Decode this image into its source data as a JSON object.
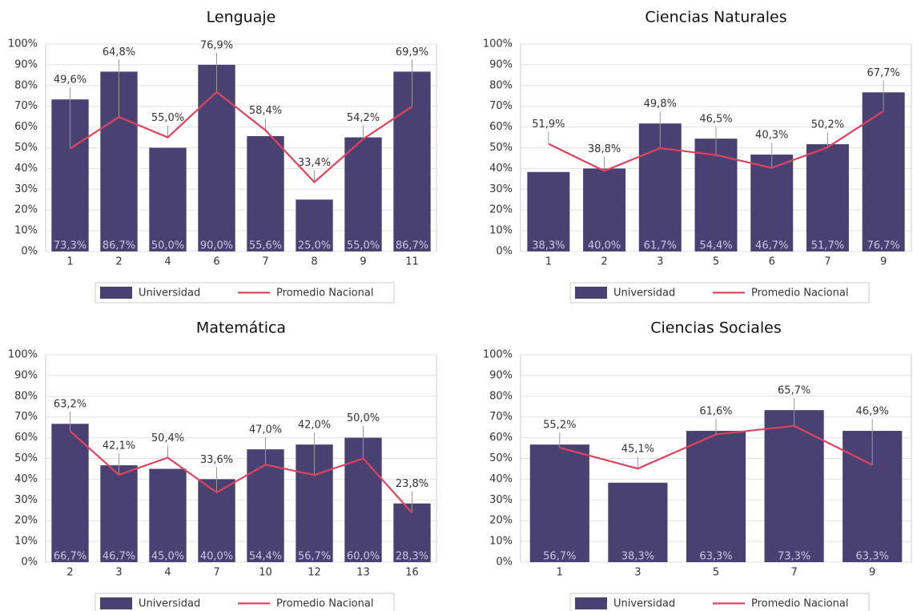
{
  "chart_data": [
    {
      "type": "bar",
      "title": "Lenguaje",
      "categories": [
        "1",
        "2",
        "4",
        "6",
        "7",
        "8",
        "9",
        "11"
      ],
      "series": [
        {
          "name": "Universidad",
          "type": "bar",
          "color": "#4a4173",
          "values": [
            73.3,
            86.7,
            50.0,
            90.0,
            55.6,
            25.0,
            55.0,
            86.7
          ],
          "value_labels": [
            "73,3%",
            "86,7%",
            "50,0%",
            "90,0%",
            "55,6%",
            "25,0%",
            "55,0%",
            "86,7%"
          ]
        },
        {
          "name": "Promedio Nacional",
          "type": "line",
          "color": "#e0435c",
          "values": [
            49.6,
            64.8,
            55.0,
            76.9,
            58.4,
            33.4,
            54.2,
            69.9
          ],
          "value_labels": [
            "49,6%",
            "64,8%",
            "55,0%",
            "76,9%",
            "58,4%",
            "33,4%",
            "54,2%",
            "69,9%"
          ]
        }
      ],
      "ylim": [
        0,
        100
      ],
      "yticks": [
        {
          "value": 0,
          "label": "0%"
        },
        {
          "value": 10,
          "label": "10%"
        },
        {
          "value": 20,
          "label": "20%"
        },
        {
          "value": 30,
          "label": "30%"
        },
        {
          "value": 40,
          "label": "40%"
        },
        {
          "value": 50,
          "label": "50%"
        },
        {
          "value": 60,
          "label": "60%"
        },
        {
          "value": 70,
          "label": "70%"
        },
        {
          "value": 80,
          "label": "80%"
        },
        {
          "value": 90,
          "label": "90%"
        },
        {
          "value": 100,
          "label": "100%"
        }
      ],
      "grid": true,
      "legend": "bottom"
    },
    {
      "type": "bar",
      "title": "Ciencias Naturales",
      "categories": [
        "1",
        "2",
        "3",
        "5",
        "6",
        "7",
        "9"
      ],
      "series": [
        {
          "name": "Universidad",
          "type": "bar",
          "color": "#4a4173",
          "values": [
            38.3,
            40.0,
            61.7,
            54.4,
            46.7,
            51.7,
            76.7
          ],
          "value_labels": [
            "38,3%",
            "40,0%",
            "61,7%",
            "54,4%",
            "46,7%",
            "51,7%",
            "76,7%"
          ]
        },
        {
          "name": "Promedio Nacional",
          "type": "line",
          "color": "#e0435c",
          "values": [
            51.9,
            38.8,
            49.8,
            46.5,
            40.3,
            50.2,
            67.7
          ],
          "value_labels": [
            "51,9%",
            "38,8%",
            "49,8%",
            "46,5%",
            "40,3%",
            "50,2%",
            "67,7%"
          ]
        }
      ],
      "ylim": [
        0,
        100
      ],
      "yticks": [
        {
          "value": 0,
          "label": "0%"
        },
        {
          "value": 10,
          "label": "10%"
        },
        {
          "value": 20,
          "label": "20%"
        },
        {
          "value": 30,
          "label": "30%"
        },
        {
          "value": 40,
          "label": "40%"
        },
        {
          "value": 50,
          "label": "50%"
        },
        {
          "value": 60,
          "label": "60%"
        },
        {
          "value": 70,
          "label": "70%"
        },
        {
          "value": 80,
          "label": "80%"
        },
        {
          "value": 90,
          "label": "90%"
        },
        {
          "value": 100,
          "label": "100%"
        }
      ],
      "grid": true,
      "legend": "bottom"
    },
    {
      "type": "bar",
      "title": "Matemática",
      "categories": [
        "2",
        "3",
        "4",
        "7",
        "10",
        "12",
        "13",
        "16"
      ],
      "series": [
        {
          "name": "Universidad",
          "type": "bar",
          "color": "#4a4173",
          "values": [
            66.7,
            46.7,
            45.0,
            40.0,
            54.4,
            56.7,
            60.0,
            28.3
          ],
          "value_labels": [
            "66,7%",
            "46,7%",
            "45,0%",
            "40,0%",
            "54,4%",
            "56,7%",
            "60,0%",
            "28,3%"
          ]
        },
        {
          "name": "Promedio Nacional",
          "type": "line",
          "color": "#e0435c",
          "values": [
            63.2,
            42.1,
            50.4,
            33.6,
            47.0,
            42.0,
            50.0,
            23.8
          ],
          "value_labels": [
            "63,2%",
            "42,1%",
            "50,4%",
            "33,6%",
            "47,0%",
            "42,0%",
            "50,0%",
            "23,8%"
          ]
        }
      ],
      "ylim": [
        0,
        100
      ],
      "yticks": [
        {
          "value": 0,
          "label": "0%"
        },
        {
          "value": 10,
          "label": "10%"
        },
        {
          "value": 20,
          "label": "20%"
        },
        {
          "value": 30,
          "label": "30%"
        },
        {
          "value": 40,
          "label": "40%"
        },
        {
          "value": 50,
          "label": "50%"
        },
        {
          "value": 60,
          "label": "60%"
        },
        {
          "value": 70,
          "label": "70%"
        },
        {
          "value": 80,
          "label": "80%"
        },
        {
          "value": 90,
          "label": "90%"
        },
        {
          "value": 100,
          "label": "100%"
        }
      ],
      "grid": true,
      "legend": "bottom"
    },
    {
      "type": "bar",
      "title": "Ciencias Sociales",
      "categories": [
        "1",
        "3",
        "5",
        "7",
        "9"
      ],
      "series": [
        {
          "name": "Universidad",
          "type": "bar",
          "color": "#4a4173",
          "values": [
            56.7,
            38.3,
            63.3,
            73.3,
            63.3
          ],
          "value_labels": [
            "56,7%",
            "38,3%",
            "63,3%",
            "73,3%",
            "63,3%"
          ]
        },
        {
          "name": "Promedio Nacional",
          "type": "line",
          "color": "#e0435c",
          "values": [
            55.2,
            45.1,
            61.6,
            65.7,
            46.9
          ],
          "value_labels": [
            "55,2%",
            "45,1%",
            "61,6%",
            "65,7%",
            "46,9%"
          ]
        }
      ],
      "ylim": [
        0,
        100
      ],
      "yticks": [
        {
          "value": 0,
          "label": "0%"
        },
        {
          "value": 10,
          "label": "10%"
        },
        {
          "value": 20,
          "label": "20%"
        },
        {
          "value": 30,
          "label": "30%"
        },
        {
          "value": 40,
          "label": "40%"
        },
        {
          "value": 50,
          "label": "50%"
        },
        {
          "value": 60,
          "label": "60%"
        },
        {
          "value": 70,
          "label": "70%"
        },
        {
          "value": 80,
          "label": "80%"
        },
        {
          "value": 90,
          "label": "90%"
        },
        {
          "value": 100,
          "label": "100%"
        }
      ],
      "grid": true,
      "legend": "bottom"
    }
  ]
}
